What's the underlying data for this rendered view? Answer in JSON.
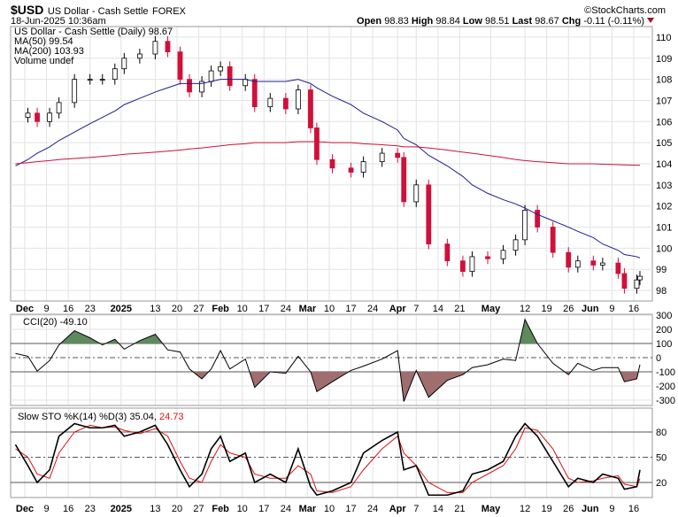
{
  "header": {
    "symbol": "$USD",
    "name": "US Dollar - Cash Settle",
    "exchange": "FOREX",
    "datetime": "18-Jun-2025 10:36am",
    "brand": "©StockCharts.com",
    "open_label": "Open",
    "open": "98.83",
    "high_label": "High",
    "high": "98.84",
    "low_label": "Low",
    "low": "98.51",
    "last_label": "Last",
    "last": "98.67",
    "chg_label": "Chg",
    "chg": "-0.11 (-0.11%)"
  },
  "legend": {
    "price": "US Dollar - Cash Settle (Daily) 98.67",
    "ma50": "MA(50) 99.54",
    "ma200": "MA(200) 103.93",
    "volume": "Volume undef",
    "cci": "CCI(20) -49.10",
    "sto": "Slow STO %K(14) %D(3) 35.04,",
    "sto_d": "24.73"
  },
  "colors": {
    "up": "#ffffff",
    "down": "#d0103a",
    "ma50": "#1c1c8c",
    "ma200": "#d0103a",
    "cci_pos": "#5e8a5e",
    "cci_neg": "#a06e6e",
    "sto_k": "#000000",
    "sto_d": "#e01010"
  },
  "chart_data": {
    "type": "candlestick",
    "price_ylim": [
      97.5,
      110.5
    ],
    "price_ticks": [
      "98",
      "99",
      "100",
      "101",
      "102",
      "103",
      "104",
      "105",
      "106",
      "107",
      "108",
      "109",
      "110"
    ],
    "cci_ylim": [
      -350,
      350
    ],
    "cci_ticks": [
      "300",
      "200",
      "100",
      "0",
      "-100",
      "-200",
      "-300"
    ],
    "sto_ylim": [
      0,
      100
    ],
    "sto_ticks": [
      "80",
      "50",
      "20"
    ],
    "x_ticks": [
      [
        "2024-12-02",
        "Dec",
        1
      ],
      [
        "2024-12-09",
        "9",
        0
      ],
      [
        "2024-12-16",
        "16",
        0
      ],
      [
        "2024-12-23",
        "23",
        0
      ],
      [
        "2025-01-02",
        "2025",
        1
      ],
      [
        "2025-01-13",
        "13",
        0
      ],
      [
        "2025-01-20",
        "20",
        0
      ],
      [
        "2025-01-27",
        "27",
        0
      ],
      [
        "2025-02-03",
        "Feb",
        1
      ],
      [
        "2025-02-10",
        "10",
        0
      ],
      [
        "2025-02-17",
        "17",
        0
      ],
      [
        "2025-02-24",
        "24",
        0
      ],
      [
        "2025-03-03",
        "Mar",
        1
      ],
      [
        "2025-03-10",
        "10",
        0
      ],
      [
        "2025-03-17",
        "17",
        0
      ],
      [
        "2025-03-24",
        "24",
        0
      ],
      [
        "2025-04-01",
        "Apr",
        1
      ],
      [
        "2025-04-07",
        "7",
        0
      ],
      [
        "2025-04-14",
        "14",
        0
      ],
      [
        "2025-04-21",
        "21",
        0
      ],
      [
        "2025-05-01",
        "May",
        1
      ],
      [
        "2025-05-12",
        "12",
        0
      ],
      [
        "2025-05-19",
        "19",
        0
      ],
      [
        "2025-05-26",
        "26",
        0
      ],
      [
        "2025-06-02",
        "Jun",
        1
      ],
      [
        "2025-06-09",
        "9",
        0
      ],
      [
        "2025-06-16",
        "16",
        0
      ]
    ],
    "columns": [
      "date",
      "close",
      "ma50",
      "ma200",
      "cci",
      "sto_k",
      "sto_d"
    ],
    "rows": [
      [
        "2024-11-29",
        106.2,
        103.9,
        104.0,
        30,
        65,
        60
      ],
      [
        "2024-12-03",
        106.4,
        104.2,
        104.05,
        10,
        40,
        50
      ],
      [
        "2024-12-06",
        106.0,
        104.5,
        104.1,
        -95,
        20,
        30
      ],
      [
        "2024-12-10",
        106.4,
        104.8,
        104.15,
        -20,
        35,
        25
      ],
      [
        "2024-12-13",
        106.9,
        105.1,
        104.2,
        90,
        75,
        55
      ],
      [
        "2024-12-18",
        108.0,
        105.5,
        104.25,
        190,
        90,
        80
      ],
      [
        "2024-12-23",
        108.0,
        105.9,
        104.3,
        140,
        85,
        88
      ],
      [
        "2024-12-27",
        108.0,
        106.2,
        104.35,
        90,
        85,
        85
      ],
      [
        "2024-12-31",
        108.5,
        106.5,
        104.4,
        130,
        88,
        86
      ],
      [
        "2025-01-03",
        109.0,
        106.8,
        104.45,
        60,
        75,
        82
      ],
      [
        "2025-01-08",
        109.2,
        107.1,
        104.5,
        120,
        80,
        78
      ],
      [
        "2025-01-13",
        109.8,
        107.4,
        104.55,
        165,
        88,
        84
      ],
      [
        "2025-01-17",
        109.3,
        107.6,
        104.6,
        55,
        65,
        75
      ],
      [
        "2025-01-21",
        108.0,
        107.8,
        104.65,
        40,
        35,
        45
      ],
      [
        "2025-01-24",
        107.4,
        107.8,
        104.7,
        -80,
        15,
        25
      ],
      [
        "2025-01-28",
        107.9,
        107.8,
        104.75,
        -150,
        30,
        20
      ],
      [
        "2025-01-31",
        108.4,
        107.9,
        104.8,
        -80,
        60,
        45
      ],
      [
        "2025-02-03",
        108.6,
        108.0,
        104.85,
        50,
        75,
        65
      ],
      [
        "2025-02-06",
        107.7,
        108.0,
        104.9,
        -80,
        45,
        55
      ],
      [
        "2025-02-11",
        108.0,
        108.0,
        104.95,
        -10,
        55,
        50
      ],
      [
        "2025-02-14",
        106.7,
        107.9,
        105.0,
        -210,
        20,
        30
      ],
      [
        "2025-02-19",
        107.1,
        107.9,
        105.0,
        -100,
        30,
        25
      ],
      [
        "2025-02-24",
        106.6,
        107.9,
        105.0,
        -110,
        20,
        25
      ],
      [
        "2025-02-28",
        107.5,
        108.0,
        105.05,
        10,
        60,
        40
      ],
      [
        "2025-03-04",
        105.7,
        107.8,
        105.05,
        -100,
        15,
        30
      ],
      [
        "2025-03-06",
        104.2,
        107.6,
        105.05,
        -240,
        5,
        10
      ],
      [
        "2025-03-11",
        103.8,
        107.2,
        105.0,
        -170,
        10,
        8
      ],
      [
        "2025-03-17",
        103.6,
        106.8,
        105.0,
        -90,
        20,
        15
      ],
      [
        "2025-03-21",
        104.1,
        106.4,
        104.95,
        -60,
        55,
        35
      ],
      [
        "2025-03-27",
        104.5,
        106.0,
        104.9,
        -10,
        70,
        60
      ],
      [
        "2025-04-01",
        104.3,
        105.6,
        104.85,
        50,
        80,
        75
      ],
      [
        "2025-04-03",
        102.2,
        105.2,
        104.8,
        -310,
        35,
        55
      ],
      [
        "2025-04-07",
        103.0,
        104.9,
        104.8,
        -90,
        40,
        40
      ],
      [
        "2025-04-11",
        100.2,
        104.4,
        104.75,
        -280,
        5,
        20
      ],
      [
        "2025-04-17",
        99.4,
        103.9,
        104.65,
        -160,
        5,
        8
      ],
      [
        "2025-04-22",
        98.9,
        103.4,
        104.55,
        -120,
        10,
        8
      ],
      [
        "2025-04-25",
        99.6,
        103.0,
        104.5,
        -70,
        30,
        20
      ],
      [
        "2025-04-30",
        99.5,
        102.6,
        104.4,
        -50,
        35,
        30
      ],
      [
        "2025-05-05",
        99.9,
        102.3,
        104.3,
        -10,
        45,
        40
      ],
      [
        "2025-05-09",
        100.4,
        102.1,
        104.2,
        -20,
        75,
        60
      ],
      [
        "2025-05-12",
        101.8,
        101.9,
        104.15,
        270,
        90,
        85
      ],
      [
        "2025-05-16",
        101.0,
        101.6,
        104.1,
        100,
        75,
        82
      ],
      [
        "2025-05-21",
        99.8,
        101.3,
        104.05,
        -40,
        45,
        60
      ],
      [
        "2025-05-26",
        99.1,
        101.0,
        104.0,
        -120,
        15,
        25
      ],
      [
        "2025-05-29",
        99.4,
        100.8,
        104.0,
        -40,
        25,
        20
      ],
      [
        "2025-06-03",
        99.2,
        100.5,
        104.0,
        -90,
        20,
        22
      ],
      [
        "2025-06-06",
        99.3,
        100.2,
        103.98,
        -70,
        30,
        25
      ],
      [
        "2025-06-11",
        98.8,
        99.9,
        103.96,
        -70,
        25,
        28
      ],
      [
        "2025-06-13",
        98.1,
        99.7,
        103.95,
        -170,
        12,
        18
      ],
      [
        "2025-06-17",
        98.5,
        99.6,
        103.93,
        -150,
        15,
        15
      ],
      [
        "2025-06-18",
        98.67,
        99.54,
        103.93,
        -49.1,
        35.04,
        24.73
      ]
    ]
  }
}
